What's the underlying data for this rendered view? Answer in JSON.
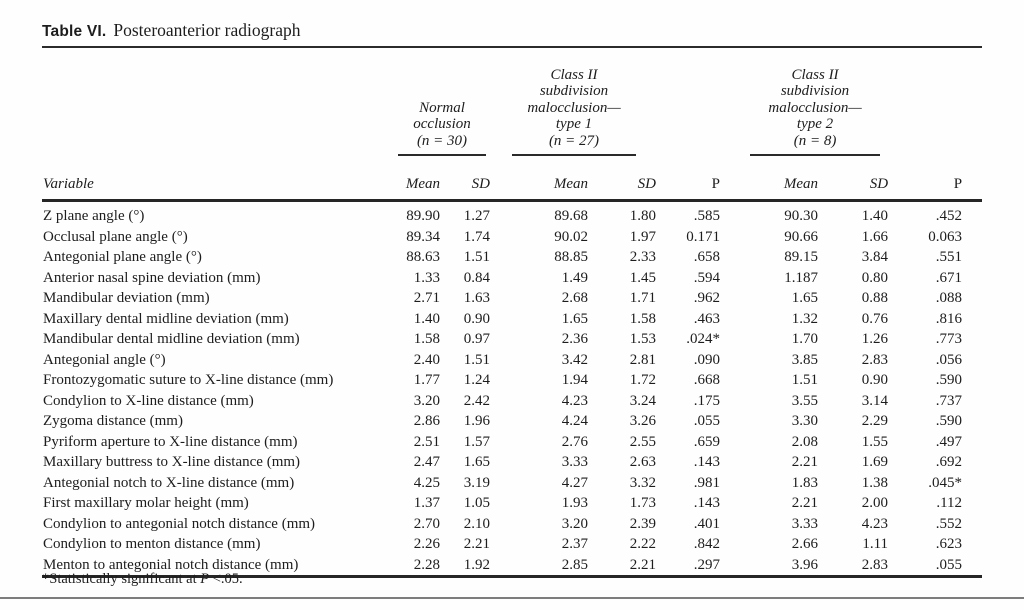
{
  "title": {
    "label": "Table VI.",
    "caption": "Posteroanterior radiograph"
  },
  "table": {
    "variable_header": "Variable",
    "sub_headers": {
      "mean": "Mean",
      "sd": "SD",
      "p": "P"
    },
    "groups": [
      {
        "lines": [
          "Normal",
          "occlusion",
          "(n = 30)"
        ]
      },
      {
        "lines": [
          "Class II",
          "subdivision",
          "malocclusion—",
          "type 1",
          "(n = 27)"
        ]
      },
      {
        "lines": [
          "Class II",
          "subdivision",
          "malocclusion—",
          "type 2",
          "(n = 8)"
        ]
      }
    ],
    "rows": [
      {
        "variable": "Z plane angle (°)",
        "values": [
          "89.90",
          "1.27",
          "89.68",
          "1.80",
          ".585",
          "90.30",
          "1.40",
          ".452"
        ]
      },
      {
        "variable": "Occlusal plane angle (°)",
        "values": [
          "89.34",
          "1.74",
          "90.02",
          "1.97",
          "0.171",
          "90.66",
          "1.66",
          "0.063"
        ]
      },
      {
        "variable": "Antegonial plane angle (°)",
        "values": [
          "88.63",
          "1.51",
          "88.85",
          "2.33",
          ".658",
          "89.15",
          "3.84",
          ".551"
        ]
      },
      {
        "variable": "Anterior nasal spine deviation (mm)",
        "values": [
          "1.33",
          "0.84",
          "1.49",
          "1.45",
          ".594",
          "1.187",
          "0.80",
          ".671"
        ]
      },
      {
        "variable": "Mandibular deviation (mm)",
        "values": [
          "2.71",
          "1.63",
          "2.68",
          "1.71",
          ".962",
          "1.65",
          "0.88",
          ".088"
        ]
      },
      {
        "variable": "Maxillary dental midline deviation (mm)",
        "values": [
          "1.40",
          "0.90",
          "1.65",
          "1.58",
          ".463",
          "1.32",
          "0.76",
          ".816"
        ]
      },
      {
        "variable": "Mandibular dental midline deviation (mm)",
        "values": [
          "1.58",
          "0.97",
          "2.36",
          "1.53",
          ".024*",
          "1.70",
          "1.26",
          ".773"
        ]
      },
      {
        "variable": "Antegonial angle (°)",
        "values": [
          "2.40",
          "1.51",
          "3.42",
          "2.81",
          ".090",
          "3.85",
          "2.83",
          ".056"
        ]
      },
      {
        "variable": "Frontozygomatic suture to X-line distance (mm)",
        "values": [
          "1.77",
          "1.24",
          "1.94",
          "1.72",
          ".668",
          "1.51",
          "0.90",
          ".590"
        ]
      },
      {
        "variable": "Condylion to X-line distance (mm)",
        "values": [
          "3.20",
          "2.42",
          "4.23",
          "3.24",
          ".175",
          "3.55",
          "3.14",
          ".737"
        ]
      },
      {
        "variable": "Zygoma distance (mm)",
        "values": [
          "2.86",
          "1.96",
          "4.24",
          "3.26",
          ".055",
          "3.30",
          "2.29",
          ".590"
        ]
      },
      {
        "variable": "Pyriform aperture to X-line distance (mm)",
        "values": [
          "2.51",
          "1.57",
          "2.76",
          "2.55",
          ".659",
          "2.08",
          "1.55",
          ".497"
        ]
      },
      {
        "variable": "Maxillary buttress to X-line distance (mm)",
        "values": [
          "2.47",
          "1.65",
          "3.33",
          "2.63",
          ".143",
          "2.21",
          "1.69",
          ".692"
        ]
      },
      {
        "variable": "Antegonial notch to X-line distance (mm)",
        "values": [
          "4.25",
          "3.19",
          "4.27",
          "3.32",
          ".981",
          "1.83",
          "1.38",
          ".045*"
        ]
      },
      {
        "variable": "First maxillary molar height (mm)",
        "values": [
          "1.37",
          "1.05",
          "1.93",
          "1.73",
          ".143",
          "2.21",
          "2.00",
          ".112"
        ]
      },
      {
        "variable": "Condylion to antegonial notch distance (mm)",
        "values": [
          "2.70",
          "2.10",
          "3.20",
          "2.39",
          ".401",
          "3.33",
          "4.23",
          ".552"
        ]
      },
      {
        "variable": "Condylion to menton distance (mm)",
        "values": [
          "2.26",
          "2.21",
          "2.37",
          "2.22",
          ".842",
          "2.66",
          "1.11",
          ".623"
        ]
      },
      {
        "variable": "Menton to antegonial notch distance (mm)",
        "values": [
          "2.28",
          "1.92",
          "2.85",
          "2.21",
          ".297",
          "3.96",
          "2.83",
          ".055"
        ]
      }
    ]
  },
  "footnote": {
    "prefix": "*Statistically significant at ",
    "italic_p": "P",
    "suffix": " <.05."
  }
}
